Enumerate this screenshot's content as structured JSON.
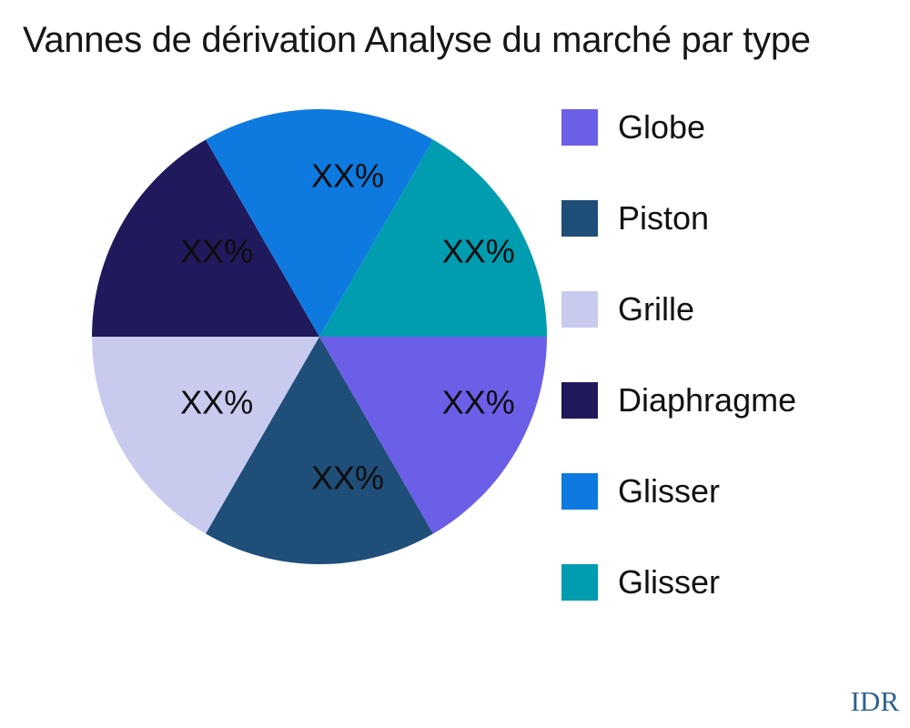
{
  "title": "Vannes de dérivation Analyse du marché par type",
  "watermark": "IDR",
  "chart_data": {
    "type": "pie",
    "title": "Vannes de dérivation Analyse du marché par type",
    "values_note": "Percent values are masked in the source image; all six slices are equal 60° wedges",
    "start_angle_deg": 0,
    "direction": "clockwise",
    "legend_position": "right",
    "background_color": "#ffffff",
    "slices": [
      {
        "name": "Globe",
        "value_label": "XX%",
        "angle_deg": 60,
        "color": "#6b5fe8"
      },
      {
        "name": "Piston",
        "value_label": "XX%",
        "angle_deg": 60,
        "color": "#1f4e79"
      },
      {
        "name": "Grille",
        "value_label": "XX%",
        "angle_deg": 60,
        "color": "#c8cbee"
      },
      {
        "name": "Diaphragme",
        "value_label": "XX%",
        "angle_deg": 60,
        "color": "#201a5c"
      },
      {
        "name": "Glisser",
        "value_label": "XX%",
        "angle_deg": 60,
        "color": "#0e7ae0"
      },
      {
        "name": "Glisser",
        "value_label": "XX%",
        "angle_deg": 60,
        "color": "#009cb0"
      }
    ]
  }
}
